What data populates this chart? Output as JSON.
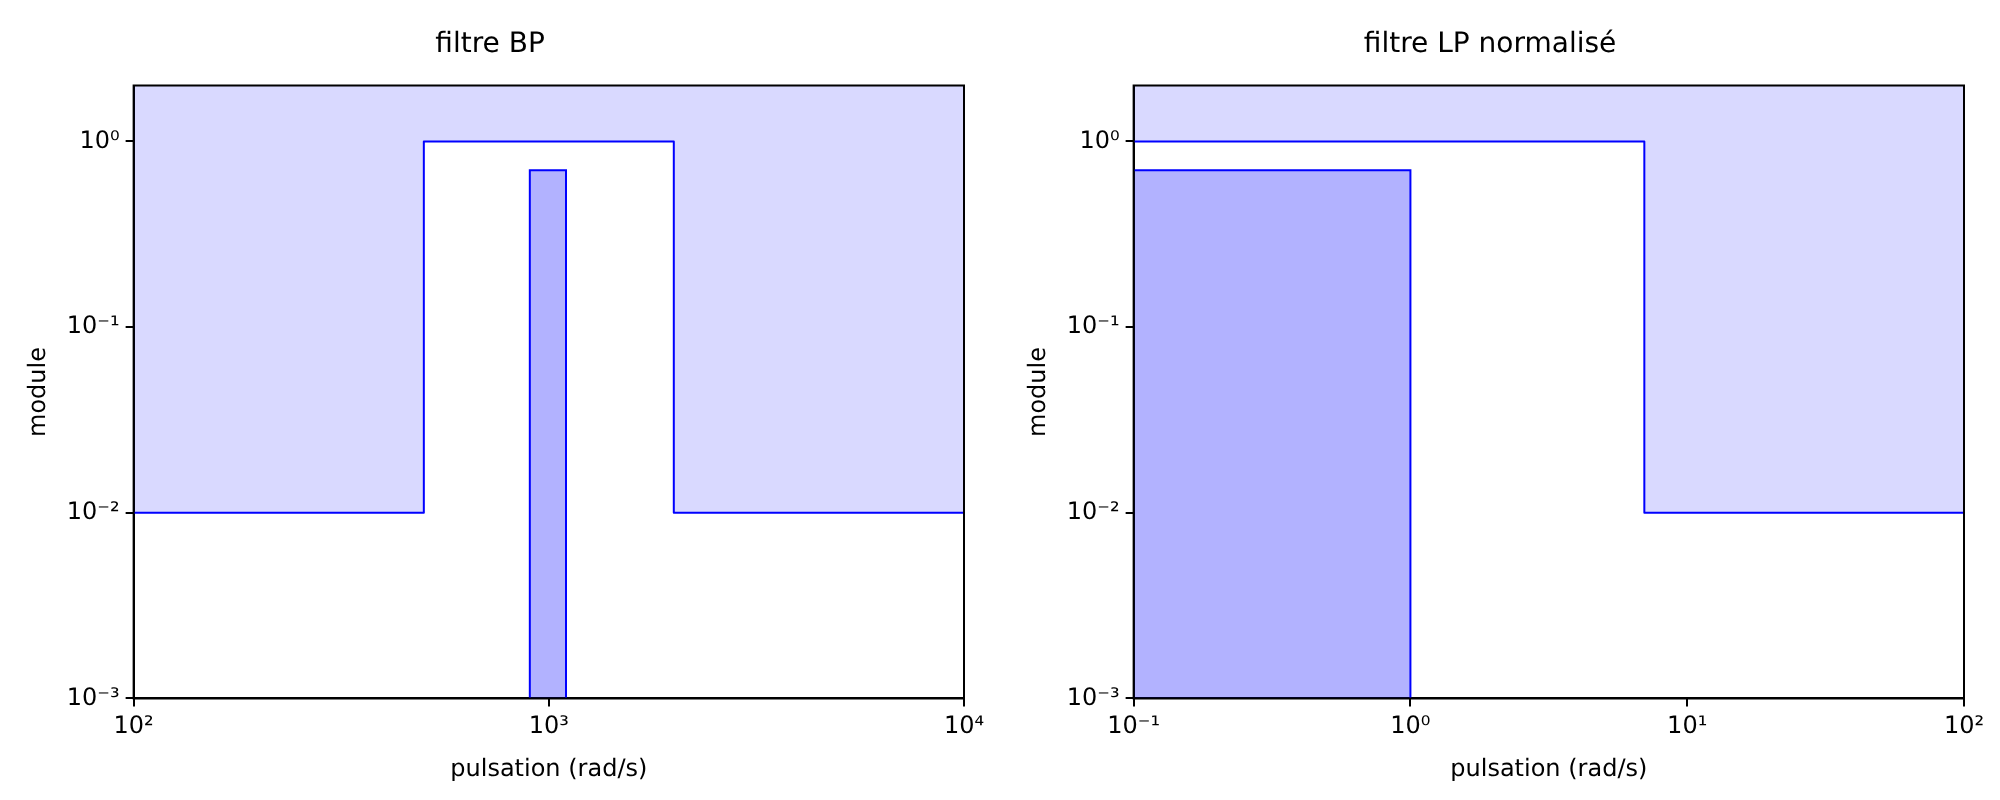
{
  "chart_data": [
    {
      "type": "line",
      "title": "filtre BP",
      "xlabel": "pulsation (rad/s)",
      "ylabel": "module",
      "log": "xy",
      "xlim": [
        100,
        10000
      ],
      "ylim": [
        0.001,
        2
      ],
      "xticks": [
        {
          "value": 100,
          "label": "10²"
        },
        {
          "value": 1000,
          "label": "10³"
        },
        {
          "value": 10000,
          "label": "10⁴"
        }
      ],
      "yticks": [
        {
          "value": 0.001,
          "label": "10⁻³"
        },
        {
          "value": 0.01,
          "label": "10⁻²"
        },
        {
          "value": 0.1,
          "label": "10⁻¹"
        },
        {
          "value": 1,
          "label": "10⁰"
        }
      ],
      "series": [
        {
          "color": "#0000ff",
          "x": [
            100,
            500,
            500,
            2000,
            2000,
            10000
          ],
          "values": [
            0.01,
            0.01,
            1,
            1,
            0.01,
            0.01
          ],
          "lower": [
            0.01,
            0.01,
            1,
            1,
            0.01,
            0.01
          ],
          "upper": [
            2,
            2,
            2,
            2,
            2,
            2
          ]
        },
        {
          "type": "area",
          "color": "#0000ff",
          "x": [
            900,
            900,
            1100,
            1100
          ],
          "values": [
            0.001,
            0.7,
            0.7,
            0.001
          ]
        }
      ]
    },
    {
      "type": "line",
      "title": "filtre LP normalisé",
      "xlabel": "pulsation (rad/s)",
      "ylabel": "module",
      "log": "xy",
      "xlim": [
        0.1,
        100
      ],
      "ylim": [
        0.001,
        2
      ],
      "xticks": [
        {
          "value": 0.1,
          "label": "10⁻¹"
        },
        {
          "value": 1,
          "label": "10⁰"
        },
        {
          "value": 10,
          "label": "10¹"
        },
        {
          "value": 100,
          "label": "10²"
        }
      ],
      "yticks": [
        {
          "value": 0.001,
          "label": "10⁻³"
        },
        {
          "value": 0.01,
          "label": "10⁻²"
        },
        {
          "value": 0.1,
          "label": "10⁻¹"
        },
        {
          "value": 1,
          "label": "10⁰"
        }
      ],
      "series": [
        {
          "color": "#0000ff",
          "x": [
            0.1,
            7,
            7,
            100
          ],
          "values": [
            1,
            1,
            0.01,
            0.01
          ],
          "lower": [
            1,
            1,
            0.01,
            0.01
          ],
          "upper": [
            2,
            2,
            2,
            2
          ]
        },
        {
          "type": "area",
          "color": "#0000ff",
          "x": [
            0.1,
            1,
            1
          ],
          "values": [
            0.7,
            0.7,
            0.001
          ]
        }
      ]
    }
  ]
}
